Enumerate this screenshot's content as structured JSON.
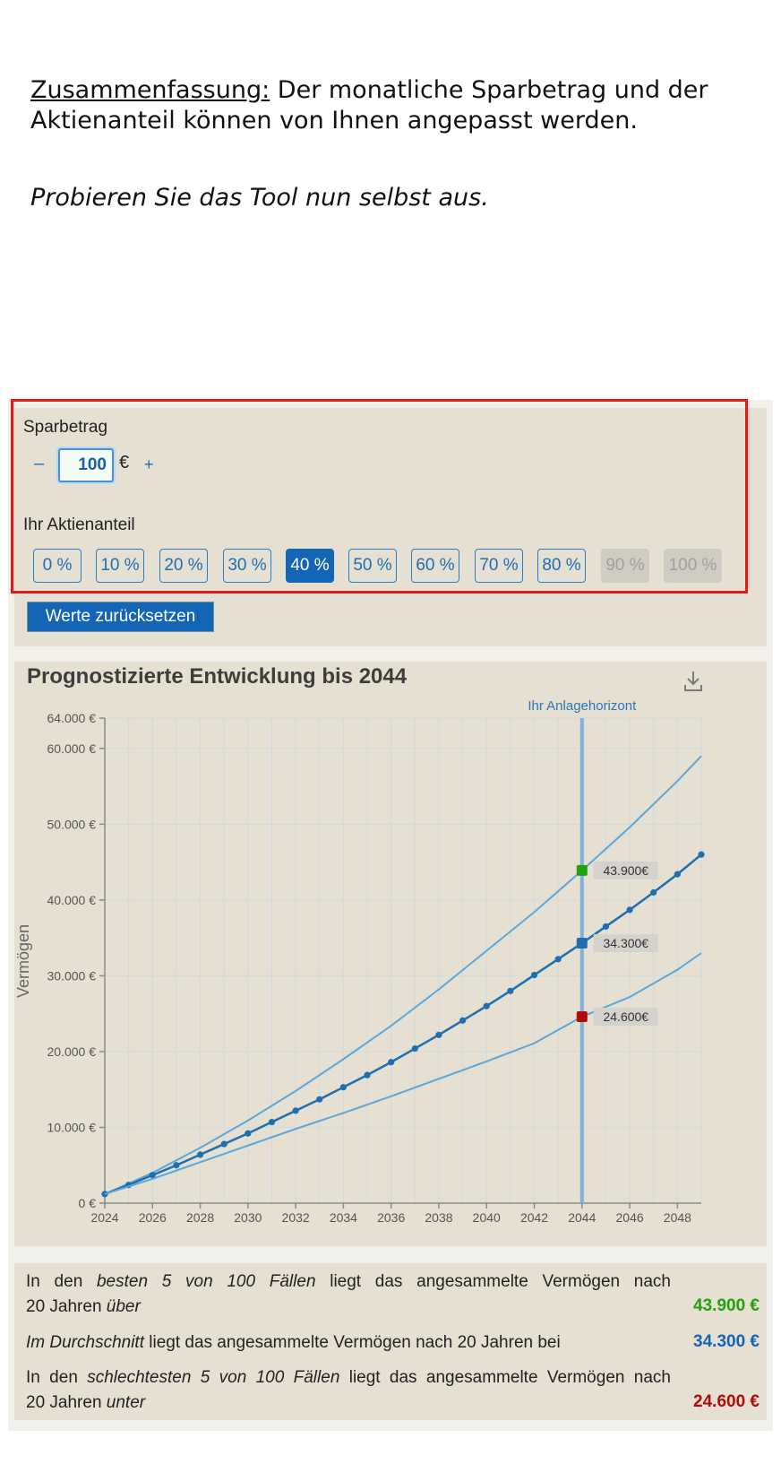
{
  "intro": {
    "heading": "Zusammenfassung:",
    "text": " Der monatliche Sparbetrag und der Aktienanteil können von Ihnen angepasst werden.",
    "try_text": "Probieren Sie das Tool nun selbst aus."
  },
  "controls": {
    "sparbetrag_label": "Sparbetrag",
    "minus": "–",
    "plus": "+",
    "amount_value": "100",
    "currency": "€",
    "aktien_label": "Ihr Aktienanteil",
    "shares": [
      {
        "label": "0 %",
        "state": "normal"
      },
      {
        "label": "10 %",
        "state": "normal"
      },
      {
        "label": "20 %",
        "state": "normal"
      },
      {
        "label": "30 %",
        "state": "normal"
      },
      {
        "label": "40 %",
        "state": "active"
      },
      {
        "label": "50 %",
        "state": "normal"
      },
      {
        "label": "60 %",
        "state": "normal"
      },
      {
        "label": "70 %",
        "state": "normal"
      },
      {
        "label": "80 %",
        "state": "normal"
      },
      {
        "label": "90 %",
        "state": "disabled"
      },
      {
        "label": "100 %",
        "state": "disabled"
      }
    ],
    "reset_label": "Werte zurücksetzen"
  },
  "chart": {
    "download_icon": "download-icon"
  },
  "chart_data": {
    "type": "line",
    "title": "Prognostizierte Entwicklung bis 2044",
    "ylabel": "Vermögen",
    "xlim": [
      2024,
      2049
    ],
    "ylim": [
      0,
      64000
    ],
    "y_ticks": [
      0,
      10000,
      20000,
      30000,
      40000,
      50000,
      60000,
      64000
    ],
    "y_tick_labels": [
      "0 €",
      "10.000 €",
      "20.000 €",
      "30.000 €",
      "40.000 €",
      "50.000 €",
      "60.000 €",
      "64.000 €"
    ],
    "x_ticks": [
      2024,
      2026,
      2028,
      2030,
      2032,
      2034,
      2036,
      2038,
      2040,
      2042,
      2044,
      2046,
      2048
    ],
    "grid": true,
    "horizon": {
      "x": 2044,
      "label": "Ihr Anlagehorizont"
    },
    "series": [
      {
        "x": [
          2024,
          2026,
          2028,
          2030,
          2032,
          2034,
          2036,
          2038,
          2040,
          2042,
          2044,
          2046,
          2048,
          2049
        ],
        "values": [
          1200,
          4000,
          7300,
          10900,
          14800,
          19000,
          23400,
          28200,
          33300,
          38400,
          43900,
          49600,
          55700,
          59000
        ],
        "color": "#5aa7dc",
        "markers": false
      },
      {
        "x": [
          2024,
          2025,
          2026,
          2027,
          2028,
          2029,
          2030,
          2031,
          2032,
          2033,
          2034,
          2035,
          2036,
          2037,
          2038,
          2039,
          2040,
          2041,
          2042,
          2043,
          2044,
          2045,
          2046,
          2047,
          2048,
          2049
        ],
        "values": [
          1200,
          2400,
          3700,
          5000,
          6400,
          7800,
          9200,
          10700,
          12200,
          13700,
          15300,
          16900,
          18600,
          20400,
          22200,
          24100,
          26000,
          28000,
          30100,
          32200,
          34300,
          36500,
          38700,
          41000,
          43400,
          46000
        ],
        "color": "#1f6fb0",
        "markers": true
      },
      {
        "x": [
          2024,
          2026,
          2028,
          2030,
          2032,
          2034,
          2036,
          2038,
          2040,
          2042,
          2044,
          2046,
          2048,
          2049
        ],
        "values": [
          1200,
          3200,
          5400,
          7600,
          9800,
          11900,
          14100,
          16400,
          18700,
          21100,
          24600,
          27200,
          30800,
          33000
        ],
        "color": "#5aa7dc",
        "markers": false
      }
    ],
    "highlights": [
      {
        "x": 2044,
        "y": 43900,
        "label": "43.900€",
        "color": "#22a20c"
      },
      {
        "x": 2044,
        "y": 34300,
        "label": "34.300€",
        "color": "#1f6fb0"
      },
      {
        "x": 2044,
        "y": 24600,
        "label": "24.600€",
        "color": "#b00c0c"
      }
    ]
  },
  "summary": {
    "best": {
      "pre": "In den ",
      "em1": "besten 5 von 100 Fällen",
      "mid": " liegt das angesammelte Vermögen nach",
      "line2": "20 Jahren ",
      "em2": "über",
      "value": "43.900 €",
      "color": "#22a20c"
    },
    "avg": {
      "em1": "Im Durchschnitt",
      "mid": " liegt das angesammelte Vermögen nach 20 Jahren bei",
      "value": "34.300 €",
      "color": "#1565b7"
    },
    "worst": {
      "pre": "In den ",
      "em1": "schlechtesten 5 von 100 Fällen",
      "mid": " liegt das angesammelte Vermögen nach",
      "line2": "20 Jahren ",
      "em2": "unter",
      "value": "24.600 €",
      "color": "#b00c0c"
    }
  }
}
